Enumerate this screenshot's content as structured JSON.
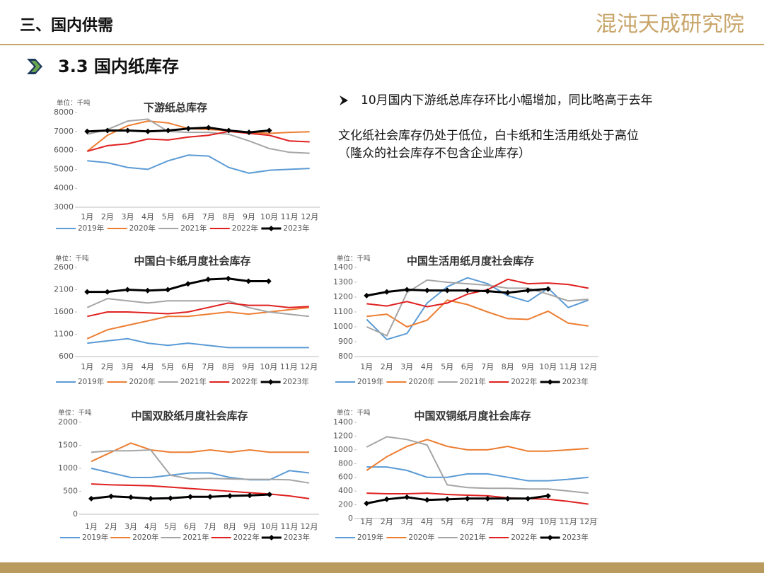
{
  "header": {
    "section": "三、国内供需",
    "logo": "混沌天成研究院"
  },
  "subtitle": "3.3 国内纸库存",
  "notes": [
    "10月国内下游纸总库存环比小幅增加，同比略高于去年",
    "文化纸社会库存仍处于低位，白卡纸和生活用纸处于高位",
    "（隆众的社会库存不包含企业库存）"
  ],
  "chart_data": [
    {
      "type": "line",
      "title": "下游纸总库存",
      "unit": "单位：千吨",
      "categories": [
        "1月",
        "2月",
        "3月",
        "4月",
        "5月",
        "6月",
        "7月",
        "8月",
        "9月",
        "10月",
        "11月",
        "12月"
      ],
      "ylim": [
        3000,
        8000
      ],
      "yticks": [
        3000,
        4000,
        5000,
        6000,
        7000,
        8000
      ],
      "series": [
        {
          "name": "2019年",
          "color": "#5b9bd5",
          "values": [
            5450,
            5350,
            5100,
            5000,
            5450,
            5750,
            5700,
            5100,
            4800,
            4950,
            5000,
            5050
          ]
        },
        {
          "name": "2020年",
          "color": "#ed7d31",
          "values": [
            5950,
            6800,
            7300,
            7550,
            7450,
            7150,
            7100,
            7050,
            6950,
            6900,
            6950,
            6980
          ]
        },
        {
          "name": "2021年",
          "color": "#a5a5a5",
          "values": [
            6850,
            7100,
            7550,
            7650,
            7000,
            6950,
            6950,
            6850,
            6500,
            6100,
            5900,
            5850
          ]
        },
        {
          "name": "2022年",
          "color": "#e02020",
          "values": [
            5950,
            6250,
            6350,
            6600,
            6550,
            6700,
            6800,
            7000,
            6900,
            6800,
            6500,
            6450
          ]
        },
        {
          "name": "2023年",
          "color": "#000000",
          "marker": "diamond",
          "values": [
            7000,
            7050,
            7050,
            7000,
            7050,
            7150,
            7200,
            7050,
            6950,
            7050,
            null,
            null
          ]
        }
      ]
    },
    {
      "type": "line",
      "title": "中国白卡纸月度社会库存",
      "unit": "单位：千吨",
      "categories": [
        "1月",
        "2月",
        "3月",
        "4月",
        "5月",
        "6月",
        "7月",
        "8月",
        "9月",
        "10月",
        "11月",
        "12月"
      ],
      "ylim": [
        600,
        2600
      ],
      "yticks": [
        600,
        1100,
        1600,
        2100,
        2600
      ],
      "series": [
        {
          "name": "2019年",
          "color": "#5b9bd5",
          "values": [
            900,
            950,
            1000,
            900,
            850,
            900,
            850,
            800,
            800,
            800,
            800,
            800
          ]
        },
        {
          "name": "2020年",
          "color": "#ed7d31",
          "values": [
            1000,
            1200,
            1300,
            1400,
            1500,
            1500,
            1550,
            1600,
            1550,
            1600,
            1650,
            1700
          ]
        },
        {
          "name": "2021年",
          "color": "#a5a5a5",
          "values": [
            1700,
            1900,
            1850,
            1800,
            1850,
            1850,
            1850,
            1850,
            1700,
            1600,
            1550,
            1500
          ]
        },
        {
          "name": "2022年",
          "color": "#e02020",
          "values": [
            1500,
            1600,
            1600,
            1580,
            1560,
            1600,
            1700,
            1800,
            1750,
            1750,
            1700,
            1720
          ]
        },
        {
          "name": "2023年",
          "color": "#000000",
          "marker": "diamond",
          "values": [
            2050,
            2050,
            2100,
            2080,
            2100,
            2230,
            2330,
            2350,
            2290,
            2290,
            null,
            null
          ]
        }
      ]
    },
    {
      "type": "line",
      "title": "中国生活用纸月度社会库存",
      "unit": "单位：千吨",
      "categories": [
        "1月",
        "2月",
        "3月",
        "4月",
        "5月",
        "6月",
        "7月",
        "8月",
        "9月",
        "10月",
        "11月",
        "12月"
      ],
      "ylim": [
        800,
        1400
      ],
      "yticks": [
        800,
        900,
        1000,
        1100,
        1200,
        1300,
        1400
      ],
      "series": [
        {
          "name": "2019年",
          "color": "#5b9bd5",
          "values": [
            1050,
            915,
            955,
            1160,
            1270,
            1330,
            1290,
            1210,
            1170,
            1260,
            1130,
            1180
          ]
        },
        {
          "name": "2020年",
          "color": "#ed7d31",
          "values": [
            1070,
            1085,
            1000,
            1045,
            1180,
            1150,
            1100,
            1055,
            1050,
            1105,
            1025,
            1005
          ]
        },
        {
          "name": "2021年",
          "color": "#a5a5a5",
          "values": [
            1000,
            940,
            1230,
            1315,
            1300,
            1290,
            1280,
            1260,
            1260,
            1220,
            1175,
            1185
          ]
        },
        {
          "name": "2022年",
          "color": "#e02020",
          "values": [
            1155,
            1140,
            1170,
            1135,
            1160,
            1220,
            1250,
            1320,
            1290,
            1295,
            1285,
            1260
          ]
        },
        {
          "name": "2023年",
          "color": "#000000",
          "marker": "diamond",
          "values": [
            1210,
            1235,
            1250,
            1245,
            1245,
            1245,
            1240,
            1230,
            1245,
            1255,
            null,
            null
          ]
        }
      ]
    },
    {
      "type": "line",
      "title": "中国双胶纸月度社会库存",
      "unit": "单位：千吨",
      "categories": [
        "1月",
        "2月",
        "3月",
        "4月",
        "5月",
        "6月",
        "7月",
        "8月",
        "9月",
        "10月",
        "11月",
        "12月"
      ],
      "ylim": [
        0,
        2000
      ],
      "yticks": [
        0,
        500,
        1000,
        1500,
        2000
      ],
      "series": [
        {
          "name": "2019年",
          "color": "#5b9bd5",
          "values": [
            1000,
            900,
            800,
            800,
            850,
            900,
            900,
            800,
            750,
            750,
            950,
            900
          ]
        },
        {
          "name": "2020年",
          "color": "#ed7d31",
          "values": [
            1150,
            1350,
            1550,
            1400,
            1350,
            1350,
            1400,
            1350,
            1400,
            1350,
            1350,
            1350
          ]
        },
        {
          "name": "2021年",
          "color": "#a5a5a5",
          "values": [
            1350,
            1380,
            1380,
            1400,
            850,
            770,
            780,
            770,
            760,
            760,
            750,
            680
          ]
        },
        {
          "name": "2022年",
          "color": "#e02020",
          "values": [
            660,
            640,
            630,
            620,
            590,
            560,
            530,
            500,
            470,
            440,
            400,
            340
          ]
        },
        {
          "name": "2023年",
          "color": "#000000",
          "marker": "diamond",
          "values": [
            340,
            390,
            370,
            340,
            350,
            380,
            380,
            400,
            410,
            430,
            null,
            null
          ]
        }
      ]
    },
    {
      "type": "line",
      "title": "中国双铜纸月度社会库存",
      "unit": "单位：千吨",
      "categories": [
        "1月",
        "2月",
        "3月",
        "4月",
        "5月",
        "6月",
        "7月",
        "8月",
        "9月",
        "10月",
        "11月",
        "12月"
      ],
      "ylim": [
        0,
        1400
      ],
      "yticks": [
        0,
        200,
        400,
        600,
        800,
        1000,
        1200,
        1400
      ],
      "series": [
        {
          "name": "2019年",
          "color": "#5b9bd5",
          "values": [
            750,
            750,
            700,
            600,
            600,
            650,
            650,
            600,
            550,
            550,
            570,
            600
          ]
        },
        {
          "name": "2020年",
          "color": "#ed7d31",
          "values": [
            700,
            900,
            1050,
            1150,
            1050,
            1000,
            1000,
            1050,
            980,
            980,
            1000,
            1020
          ]
        },
        {
          "name": "2021年",
          "color": "#a5a5a5",
          "values": [
            1040,
            1190,
            1150,
            1070,
            490,
            450,
            440,
            440,
            430,
            430,
            400,
            370
          ]
        },
        {
          "name": "2022年",
          "color": "#e02020",
          "values": [
            370,
            360,
            360,
            370,
            350,
            340,
            330,
            300,
            290,
            280,
            250,
            210
          ]
        },
        {
          "name": "2023年",
          "color": "#000000",
          "marker": "diamond",
          "values": [
            220,
            280,
            310,
            270,
            280,
            290,
            290,
            290,
            290,
            330,
            null,
            null
          ]
        }
      ]
    }
  ]
}
